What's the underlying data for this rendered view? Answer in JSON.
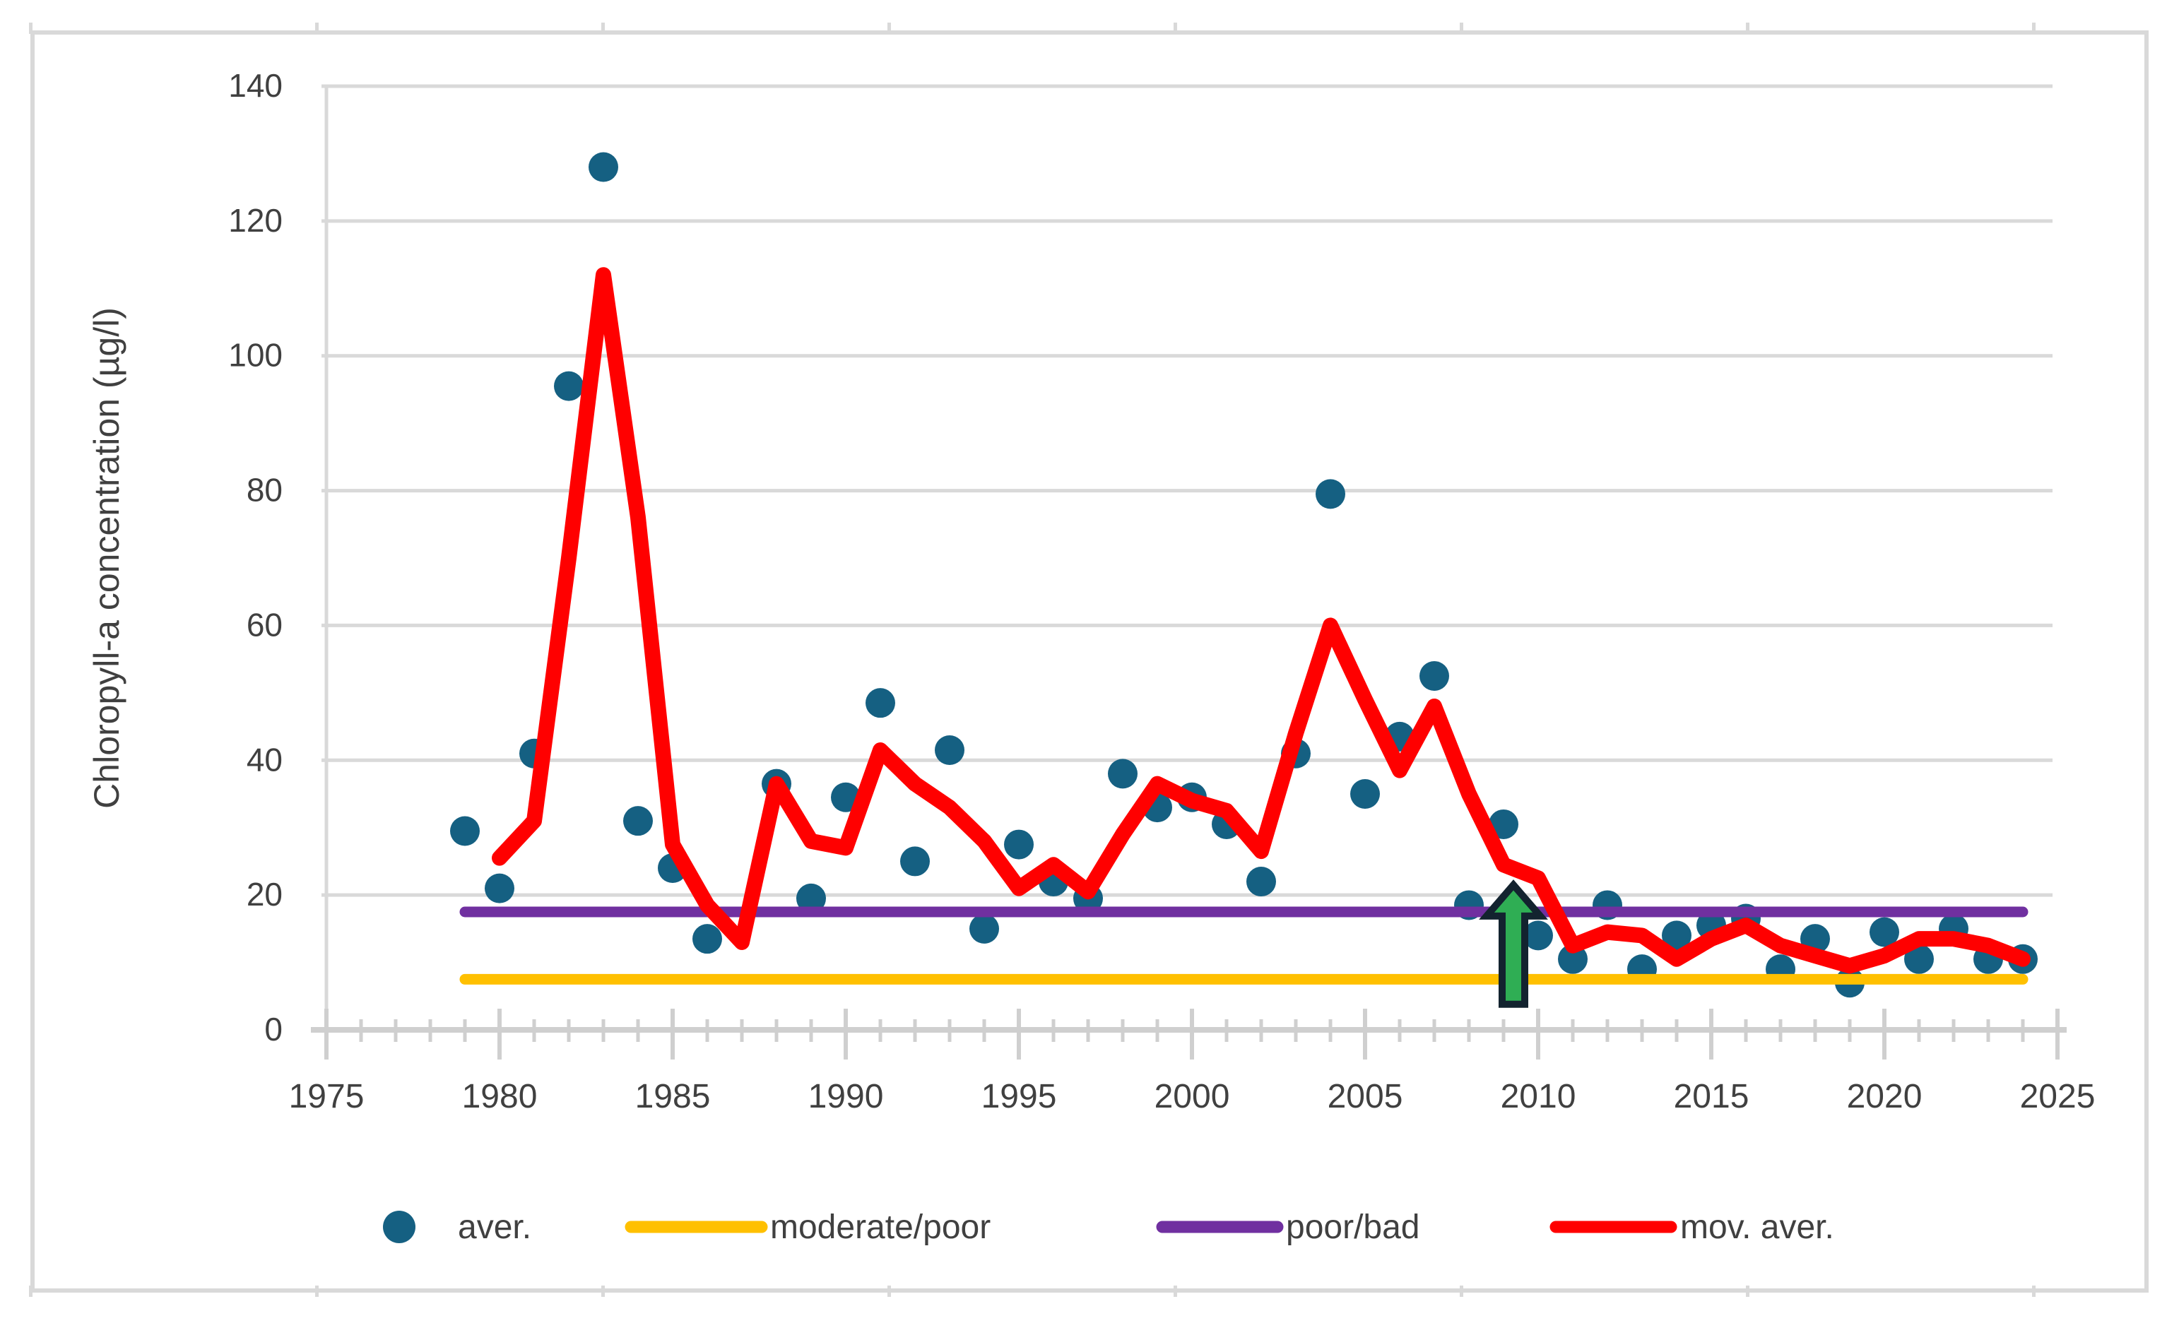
{
  "figure": {
    "background": "#ffffff",
    "frame_color": "#d9d9d9",
    "tick_label_color": "#404040",
    "gridline_color": "#d9d9d9",
    "axis_line_color": "#cfcfcf"
  },
  "chart_data": {
    "type": "scatter",
    "title": "",
    "xlabel": "",
    "ylabel": "Chloropyll-a concentration (µg/l)",
    "xlim": [
      1975,
      2025
    ],
    "ylim": [
      0,
      140
    ],
    "x_ticks": [
      1975,
      1980,
      1985,
      1990,
      1995,
      2000,
      2005,
      2010,
      2015,
      2020,
      2025
    ],
    "y_ticks": [
      0,
      20,
      40,
      60,
      80,
      100,
      120,
      140
    ],
    "grid": "horizontal",
    "legend_position": "bottom",
    "series": [
      {
        "name": "aver.",
        "type": "scatter",
        "color": "#156082",
        "points": [
          [
            1979,
            29.5
          ],
          [
            1980,
            21
          ],
          [
            1981,
            41
          ],
          [
            1982,
            95.5
          ],
          [
            1983,
            128
          ],
          [
            1984,
            31
          ],
          [
            1985,
            24
          ],
          [
            1986,
            13.5
          ],
          [
            1988,
            36.5
          ],
          [
            1989,
            19.5
          ],
          [
            1990,
            34.5
          ],
          [
            1991,
            48.5
          ],
          [
            1992,
            25
          ],
          [
            1993,
            41.5
          ],
          [
            1994,
            15
          ],
          [
            1995,
            27.5
          ],
          [
            1996,
            22
          ],
          [
            1997,
            19.5
          ],
          [
            1998,
            38
          ],
          [
            1999,
            33
          ],
          [
            2000,
            34.5
          ],
          [
            2001,
            30.5
          ],
          [
            2002,
            22
          ],
          [
            2003,
            41
          ],
          [
            2004,
            79.5
          ],
          [
            2005,
            35
          ],
          [
            2006,
            43.5
          ],
          [
            2007,
            52.5
          ],
          [
            2008,
            18.5
          ],
          [
            2009,
            30.5
          ],
          [
            2010,
            14
          ],
          [
            2011,
            10.5
          ],
          [
            2012,
            18.5
          ],
          [
            2013,
            9
          ],
          [
            2014,
            14
          ],
          [
            2015,
            15.5
          ],
          [
            2016,
            16.5
          ],
          [
            2017,
            9
          ],
          [
            2018,
            13.5
          ],
          [
            2019,
            7
          ],
          [
            2020,
            14.5
          ],
          [
            2021,
            10.5
          ],
          [
            2022,
            15
          ],
          [
            2023,
            10.5
          ],
          [
            2024,
            10.5
          ]
        ]
      },
      {
        "name": "moderate/poor",
        "type": "hline",
        "color": "#FFC000",
        "value": 7.5,
        "x_start": 1979,
        "x_end": 2024
      },
      {
        "name": "poor/bad",
        "type": "hline",
        "color": "#7030A0",
        "value": 17.5,
        "x_start": 1979,
        "x_end": 2024
      },
      {
        "name": "mov. aver.",
        "type": "line",
        "color": "#FF0000",
        "points": [
          [
            1980,
            25.5
          ],
          [
            1981,
            31
          ],
          [
            1982,
            70
          ],
          [
            1983,
            112
          ],
          [
            1984,
            76
          ],
          [
            1985,
            27.5
          ],
          [
            1986,
            18.5
          ],
          [
            1987,
            13
          ],
          [
            1988,
            36.5
          ],
          [
            1989,
            28
          ],
          [
            1990,
            27
          ],
          [
            1991,
            41.5
          ],
          [
            1992,
            36.5
          ],
          [
            1993,
            33
          ],
          [
            1994,
            28
          ],
          [
            1995,
            21
          ],
          [
            1996,
            24.5
          ],
          [
            1997,
            20.5
          ],
          [
            1998,
            29
          ],
          [
            1999,
            36.5
          ],
          [
            2000,
            34
          ],
          [
            2001,
            32.5
          ],
          [
            2002,
            26.5
          ],
          [
            2003,
            44
          ],
          [
            2004,
            60
          ],
          [
            2005,
            49
          ],
          [
            2006,
            38.5
          ],
          [
            2007,
            48
          ],
          [
            2008,
            35
          ],
          [
            2009,
            24.5
          ],
          [
            2010,
            22.5
          ],
          [
            2011,
            12.5
          ],
          [
            2012,
            14.5
          ],
          [
            2013,
            14
          ],
          [
            2014,
            10.5
          ],
          [
            2015,
            13.5
          ],
          [
            2016,
            15.5
          ],
          [
            2017,
            12.5
          ],
          [
            2018,
            11
          ],
          [
            2019,
            9.5
          ],
          [
            2020,
            11
          ],
          [
            2021,
            13.5
          ],
          [
            2022,
            13.5
          ],
          [
            2023,
            12.5
          ],
          [
            2024,
            10.5
          ]
        ]
      }
    ],
    "annotations": [
      {
        "type": "arrow-up",
        "x": 2009,
        "y_base": 3.8,
        "y_tip": 21.5,
        "fill": "#2fae54",
        "stroke": "#13232f"
      }
    ]
  },
  "legend": {
    "items": [
      {
        "label": "aver.",
        "marker": "dot",
        "color": "#156082"
      },
      {
        "label": "moderate/poor",
        "marker": "line",
        "color": "#FFC000"
      },
      {
        "label": "poor/bad",
        "marker": "line",
        "color": "#7030A0"
      },
      {
        "label": "mov. aver.",
        "marker": "line",
        "color": "#FF0000"
      }
    ]
  }
}
